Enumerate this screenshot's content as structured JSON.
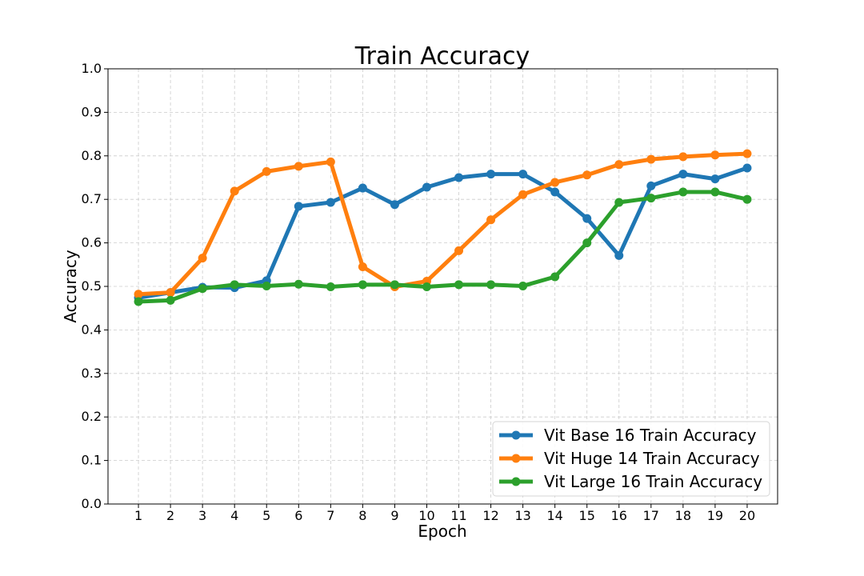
{
  "chart_data": {
    "type": "line",
    "title": "Train Accuracy",
    "xlabel": "Epoch",
    "ylabel": "Accuracy",
    "x": [
      1,
      2,
      3,
      4,
      5,
      6,
      7,
      8,
      9,
      10,
      11,
      12,
      13,
      14,
      15,
      16,
      17,
      18,
      19,
      20
    ],
    "ylim": [
      0.0,
      1.0
    ],
    "yticks": [
      "0.0",
      "0.1",
      "0.2",
      "0.3",
      "0.4",
      "0.5",
      "0.6",
      "0.7",
      "0.8",
      "0.9",
      "1.0"
    ],
    "xticks": [
      "1",
      "2",
      "3",
      "4",
      "5",
      "6",
      "7",
      "8",
      "9",
      "10",
      "11",
      "12",
      "13",
      "14",
      "15",
      "16",
      "17",
      "18",
      "19",
      "20"
    ],
    "grid": true,
    "legend_position": "lower-right",
    "series": [
      {
        "name": "Vit Base 16 Train Accuracy",
        "color": "#1f77b4",
        "values": [
          0.474,
          0.486,
          0.498,
          0.497,
          0.513,
          0.684,
          0.693,
          0.726,
          0.688,
          0.728,
          0.75,
          0.758,
          0.758,
          0.717,
          0.656,
          0.571,
          0.731,
          0.758,
          0.747,
          0.772
        ]
      },
      {
        "name": "Vit Huge 14 Train Accuracy",
        "color": "#ff7f0e",
        "values": [
          0.482,
          0.486,
          0.565,
          0.719,
          0.764,
          0.776,
          0.786,
          0.545,
          0.499,
          0.512,
          0.582,
          0.653,
          0.711,
          0.739,
          0.756,
          0.78,
          0.792,
          0.798,
          0.802,
          0.805
        ]
      },
      {
        "name": "Vit Large 16 Train Accuracy",
        "color": "#2ca02c",
        "values": [
          0.465,
          0.468,
          0.495,
          0.504,
          0.501,
          0.505,
          0.499,
          0.504,
          0.504,
          0.499,
          0.504,
          0.504,
          0.501,
          0.522,
          0.6,
          0.693,
          0.703,
          0.717,
          0.717,
          0.7
        ]
      }
    ]
  }
}
